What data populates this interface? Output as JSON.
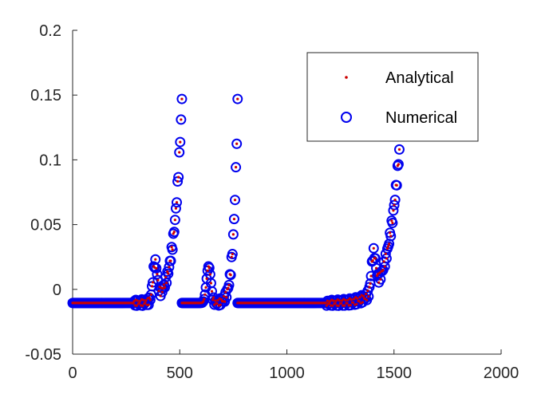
{
  "chart_data": {
    "type": "scatter",
    "title": "",
    "xlabel": "",
    "ylabel": "",
    "xlim": [
      0,
      2000
    ],
    "ylim": [
      -0.05,
      0.2
    ],
    "xticks": [
      0,
      500,
      1000,
      1500,
      2000
    ],
    "yticks": [
      -0.05,
      0,
      0.05,
      0.1,
      0.15,
      0.2
    ],
    "xtick_labels": [
      "0",
      "500",
      "1000",
      "1500",
      "2000"
    ],
    "ytick_labels": [
      "-0.05",
      "0",
      "0.05",
      "0.1",
      "0.15",
      "0.2"
    ],
    "grid": false,
    "legend_position": "top-right",
    "colors": {
      "analytical": "#cc0000",
      "numerical": "#0000ee",
      "axis": "#262626"
    },
    "series": [
      {
        "name": "Analytical",
        "marker": "dot"
      },
      {
        "name": "Numerical",
        "marker": "circle"
      }
    ],
    "segments": [
      {
        "x_start": 0,
        "x_end": 510,
        "y_base": -0.0105,
        "y_peak": 0.147,
        "bump_x": 385,
        "bump_y": 0.021
      },
      {
        "x_start": 510,
        "x_end": 770,
        "y_base": -0.0105,
        "y_peak": 0.147,
        "bump_x": 635,
        "bump_y": 0.021
      },
      {
        "x_start": 770,
        "x_end": 1525,
        "y_base": -0.0105,
        "y_peak": 0.108,
        "bump_x": 1405,
        "bump_y": 0.021
      }
    ]
  }
}
